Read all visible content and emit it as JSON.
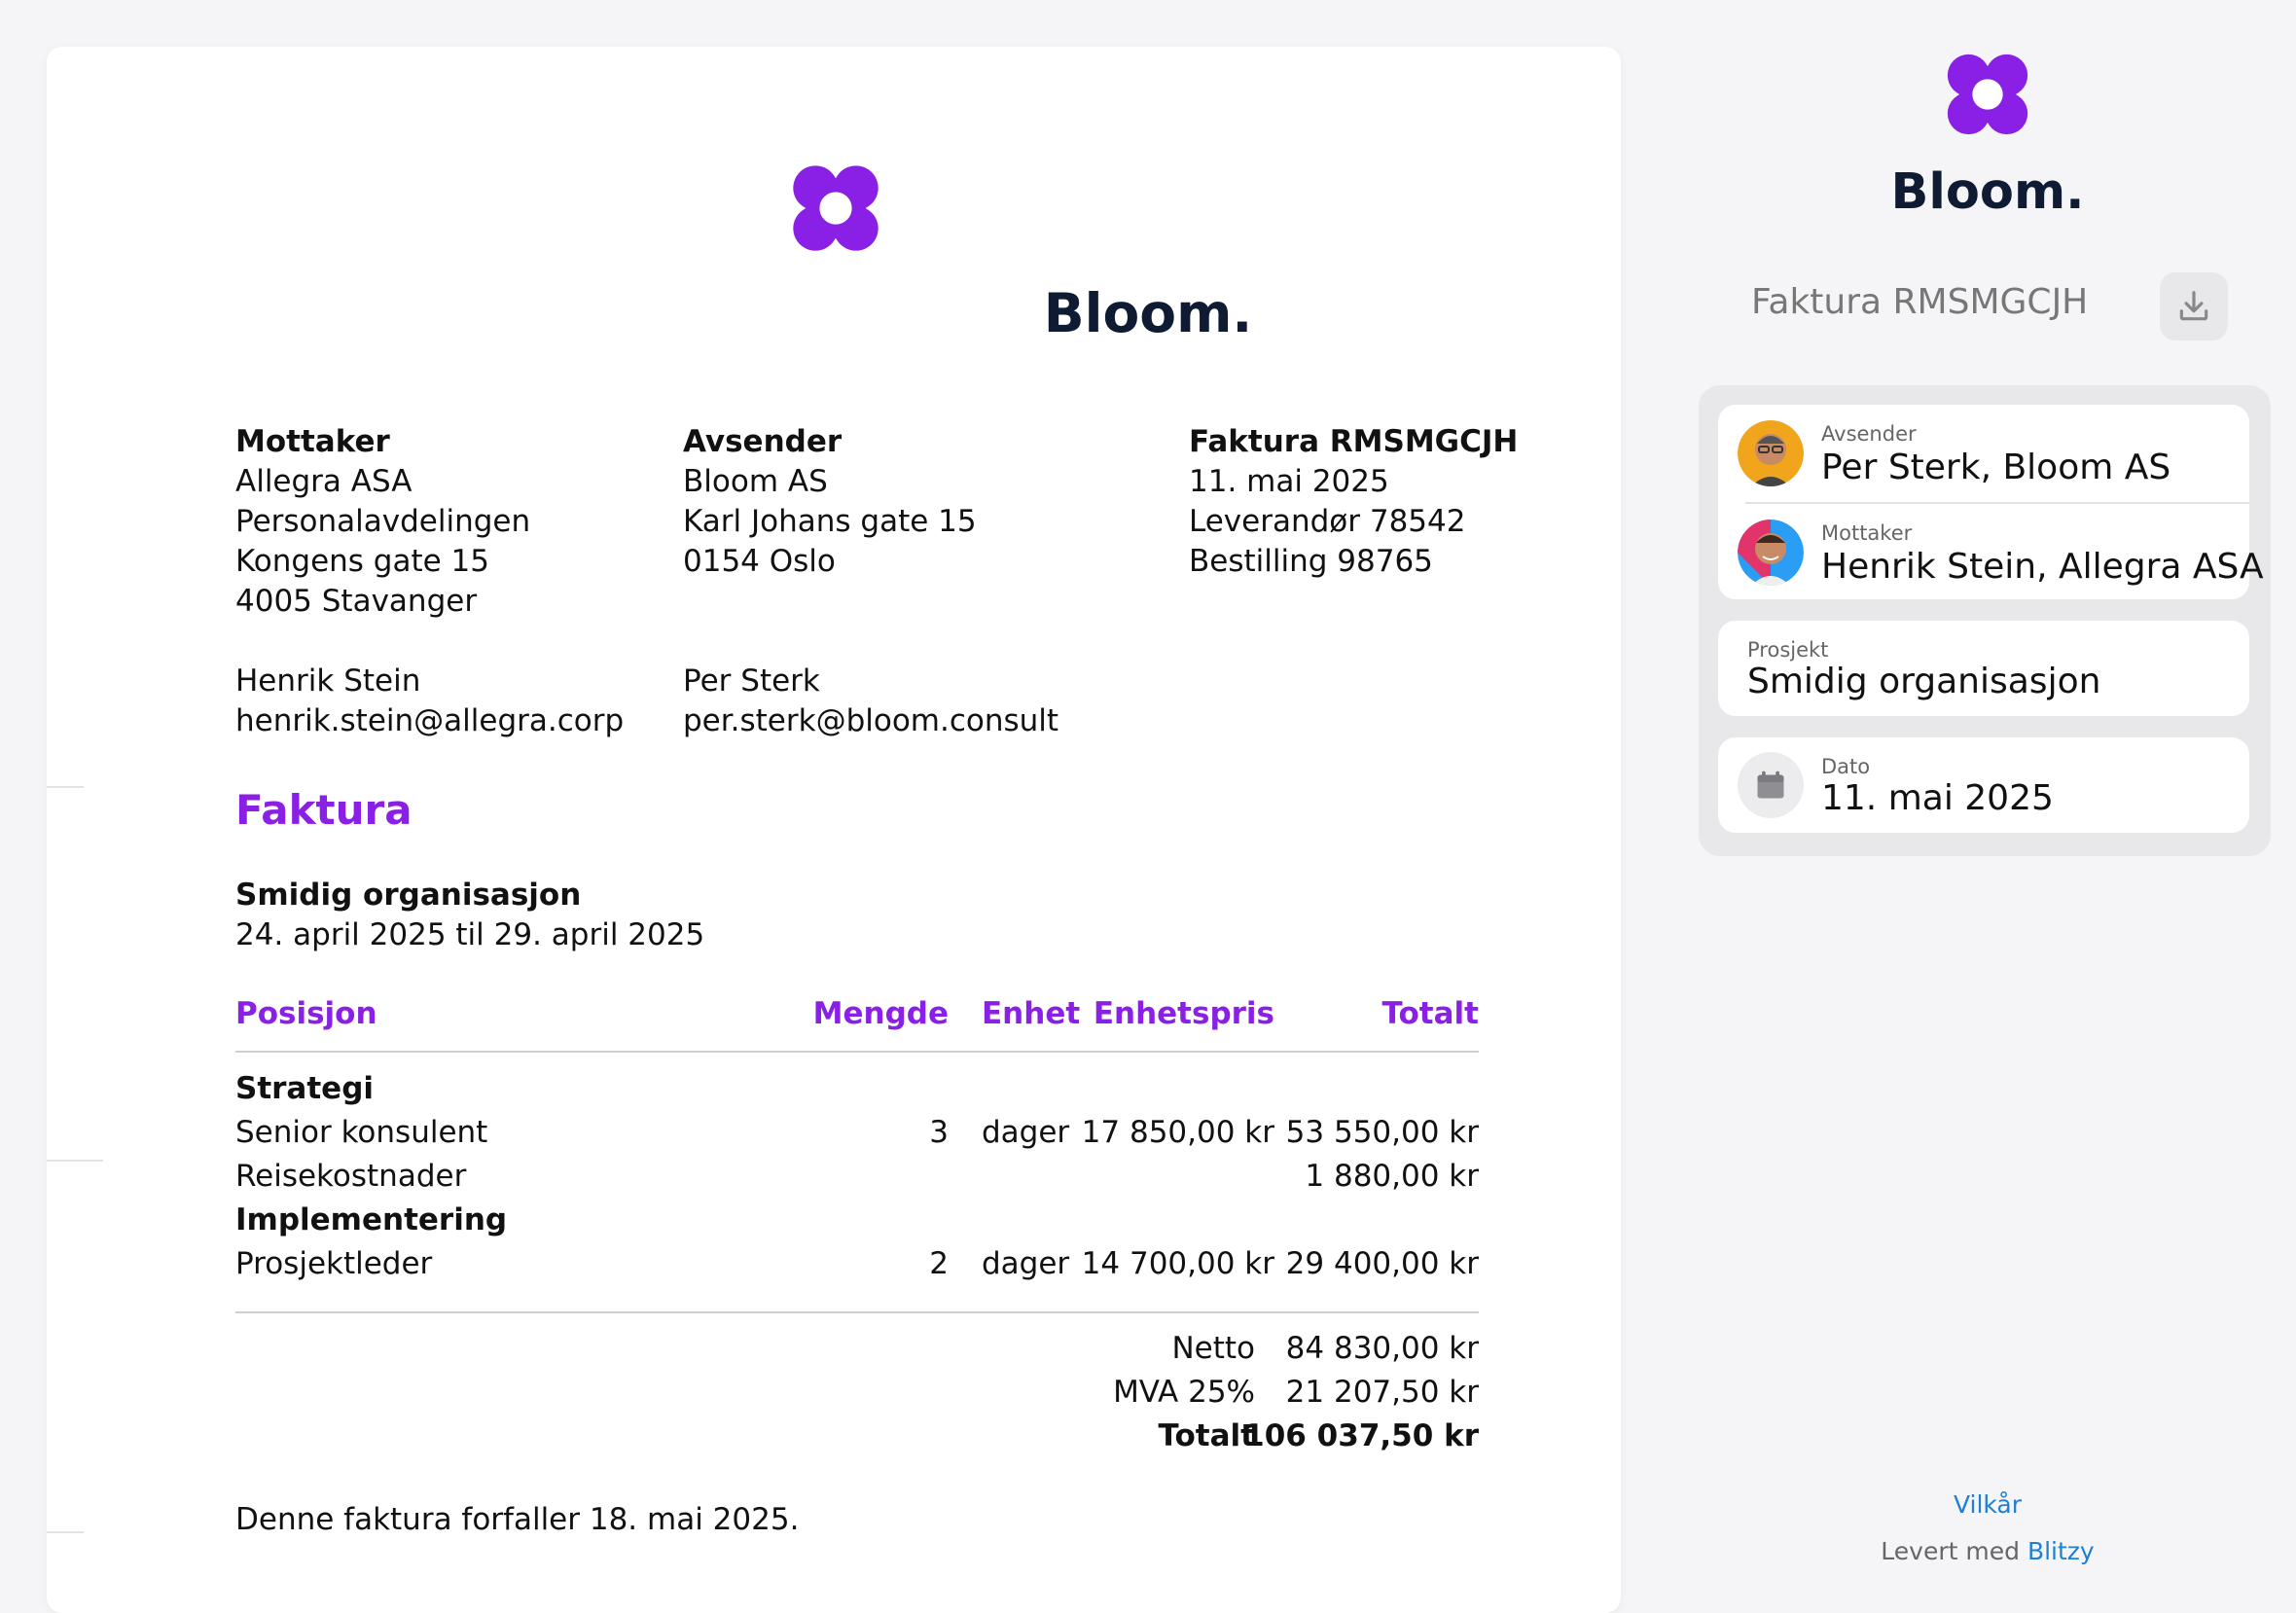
{
  "brand": {
    "name": "Bloom.",
    "accent": "#8a1fe6",
    "dark": "#0e1b33"
  },
  "invoice": {
    "recipient": {
      "heading": "Mottaker",
      "lines": [
        "Allegra ASA",
        "Personalavdelingen",
        "Kongens gate 15",
        "4005 Stavanger"
      ],
      "contact_name": "Henrik Stein",
      "contact_email": "henrik.stein@allegra.corp"
    },
    "sender": {
      "heading": "Avsender",
      "lines": [
        "Bloom AS",
        "Karl Johans gate 15",
        "0154 Oslo"
      ],
      "contact_name": "Per Sterk",
      "contact_email": "per.sterk@bloom.consult"
    },
    "meta": {
      "heading": "Faktura RMSMGCJH",
      "lines": [
        "11. mai 2025",
        "Leverandør 78542",
        "Bestilling 98765"
      ]
    },
    "section_title": "Faktura",
    "project": {
      "title": "Smidig organisasjon",
      "period": "24. april 2025 til 29. april 2025"
    },
    "table": {
      "headers": {
        "position": "Posisjon",
        "quantity": "Mengde",
        "unit": "Enhet",
        "unit_price": "Enhetspris",
        "total": "Totalt"
      },
      "groups": [
        {
          "name": "Strategi",
          "items": [
            {
              "position": "Senior konsulent",
              "quantity": "3",
              "unit": "dager",
              "unit_price": "17 850,00 kr",
              "total": "53 550,00 kr"
            },
            {
              "position": "Reisekostnader",
              "quantity": "",
              "unit": "",
              "unit_price": "",
              "total": "1 880,00 kr"
            }
          ]
        },
        {
          "name": "Implementering",
          "items": [
            {
              "position": "Prosjektleder",
              "quantity": "2",
              "unit": "dager",
              "unit_price": "14 700,00 kr",
              "total": "29 400,00 kr"
            }
          ]
        }
      ]
    },
    "summary": {
      "net_label": "Netto",
      "net_value": "84 830,00 kr",
      "vat_label": "MVA 25%",
      "vat_value": "21 207,50 kr",
      "total_label": "Totalt",
      "total_value": "106 037,50 kr"
    },
    "due_note": "Denne faktura forfaller 18. mai 2025."
  },
  "sidebar": {
    "title": "Faktura RMSMGCJH",
    "download_icon": "download-icon",
    "sender": {
      "label": "Avsender",
      "value": "Per Sterk, Bloom AS"
    },
    "recipient": {
      "label": "Mottaker",
      "value": "Henrik Stein, Allegra ASA"
    },
    "project": {
      "label": "Prosjekt",
      "value": "Smidig organisasjon"
    },
    "date": {
      "label": "Dato",
      "value": "11. mai 2025",
      "icon": "calendar-icon"
    },
    "terms_link": "Vilkår",
    "powered_prefix": "Levert med",
    "powered_link": "Blitzy"
  }
}
